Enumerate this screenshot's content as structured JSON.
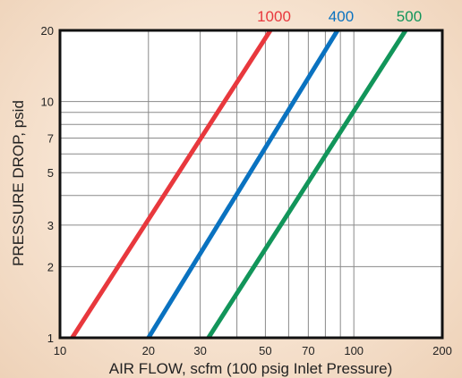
{
  "chart_data": {
    "type": "line",
    "title": "",
    "xlabel": "AIR FLOW, scfm (100 psig Inlet Pressure)",
    "ylabel": "PRESSURE DROP, psid",
    "x_scale": "log",
    "y_scale": "log",
    "xlim": [
      10,
      200
    ],
    "ylim": [
      1,
      20
    ],
    "x_ticks": [
      10,
      20,
      30,
      50,
      70,
      100,
      200
    ],
    "y_ticks": [
      1,
      2,
      3,
      5,
      7,
      10,
      20
    ],
    "x_gridlines": [
      10,
      20,
      30,
      40,
      50,
      60,
      70,
      80,
      90,
      100,
      200
    ],
    "y_gridlines": [
      1,
      2,
      3,
      4,
      5,
      6,
      7,
      8,
      9,
      10,
      20
    ],
    "grid": true,
    "legend": "top, labels above each line",
    "series": [
      {
        "name": "1000",
        "color": "#e8383d",
        "points": [
          [
            11,
            1
          ],
          [
            52,
            20
          ]
        ]
      },
      {
        "name": "400",
        "color": "#0a72c0",
        "points": [
          [
            20,
            1
          ],
          [
            88,
            20
          ]
        ]
      },
      {
        "name": "500",
        "color": "#12955a",
        "points": [
          [
            32,
            1
          ],
          [
            150,
            20
          ]
        ]
      }
    ]
  }
}
